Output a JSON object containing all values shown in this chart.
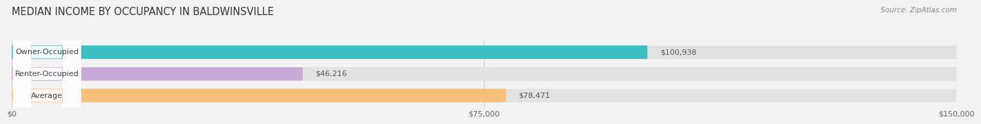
{
  "title": "MEDIAN INCOME BY OCCUPANCY IN BALDWINSVILLE",
  "source": "Source: ZipAtlas.com",
  "categories": [
    "Owner-Occupied",
    "Renter-Occupied",
    "Average"
  ],
  "values": [
    100938,
    46216,
    78471
  ],
  "bar_colors": [
    "#3bbfc0",
    "#c9aad6",
    "#f5c07a"
  ],
  "bar_labels": [
    "$100,938",
    "$46,216",
    "$78,471"
  ],
  "xlim": [
    0,
    150000
  ],
  "xticks": [
    0,
    75000,
    150000
  ],
  "xticklabels": [
    "$0",
    "$75,000",
    "$150,000"
  ],
  "background_color": "#f2f2f2",
  "bar_bg_color": "#e2e2e2",
  "label_box_color": "#ffffff",
  "title_fontsize": 10.5,
  "label_fontsize": 8,
  "tick_fontsize": 8,
  "value_fontsize": 8
}
